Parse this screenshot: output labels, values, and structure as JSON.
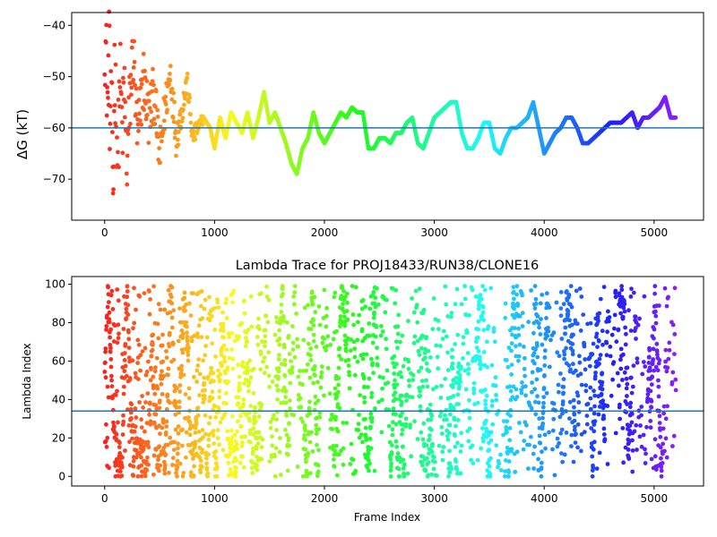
{
  "chart_data": [
    {
      "type": "scatter",
      "title": "",
      "xlabel": "",
      "ylabel": "ΔG (kT)",
      "xlim": [
        -300,
        5450
      ],
      "ylim": [
        -78,
        -37.5
      ],
      "xticks": [
        0,
        1000,
        2000,
        3000,
        4000,
        5000
      ],
      "yticks": [
        -70,
        -60,
        -50,
        -40
      ],
      "reference_line": {
        "y": -60,
        "color": "#1f77b4"
      },
      "colormap": "rainbow (red at frame 0 → violet at last frame)",
      "x_range": [
        0,
        5200
      ],
      "series": [
        {
          "values_description": "noisy scatter near start, converging to smooth trace",
          "points": [
            [
              0,
              -40
            ],
            [
              20,
              -50
            ],
            [
              30,
              -56
            ],
            [
              40,
              -42
            ],
            [
              50,
              -63
            ],
            [
              60,
              -39
            ],
            [
              70,
              -70
            ],
            [
              80,
              -72
            ],
            [
              90,
              -47
            ],
            [
              100,
              -54
            ],
            [
              120,
              -66
            ],
            [
              140,
              -49
            ],
            [
              160,
              -61
            ],
            [
              180,
              -52
            ],
            [
              200,
              -68
            ],
            [
              230,
              -55
            ],
            [
              260,
              -45
            ],
            [
              300,
              -63
            ],
            [
              350,
              -50
            ],
            [
              400,
              -58
            ],
            [
              450,
              -53
            ],
            [
              500,
              -66
            ],
            [
              550,
              -56
            ],
            [
              600,
              -49
            ],
            [
              650,
              -62
            ],
            [
              700,
              -57
            ],
            [
              750,
              -51
            ],
            [
              800,
              -62
            ],
            [
              900,
              -58
            ],
            [
              960,
              -60
            ],
            [
              1000,
              -64
            ],
            [
              1050,
              -58
            ],
            [
              1100,
              -62
            ],
            [
              1150,
              -57
            ],
            [
              1200,
              -59
            ],
            [
              1250,
              -61
            ],
            [
              1300,
              -57
            ],
            [
              1350,
              -62
            ],
            [
              1400,
              -58
            ],
            [
              1450,
              -53
            ],
            [
              1500,
              -59
            ],
            [
              1550,
              -57
            ],
            [
              1600,
              -60
            ],
            [
              1650,
              -63
            ],
            [
              1700,
              -67
            ],
            [
              1750,
              -69
            ],
            [
              1800,
              -64
            ],
            [
              1850,
              -62
            ],
            [
              1900,
              -57
            ],
            [
              1950,
              -61
            ],
            [
              2000,
              -63
            ],
            [
              2100,
              -59
            ],
            [
              2150,
              -57
            ],
            [
              2200,
              -58
            ],
            [
              2250,
              -56
            ],
            [
              2300,
              -57
            ],
            [
              2350,
              -57
            ],
            [
              2400,
              -64
            ],
            [
              2450,
              -64
            ],
            [
              2500,
              -62
            ],
            [
              2550,
              -62
            ],
            [
              2600,
              -63
            ],
            [
              2650,
              -61
            ],
            [
              2700,
              -61
            ],
            [
              2750,
              -59
            ],
            [
              2800,
              -58
            ],
            [
              2850,
              -63
            ],
            [
              2900,
              -64
            ],
            [
              2950,
              -61
            ],
            [
              3000,
              -58
            ],
            [
              3050,
              -57
            ],
            [
              3100,
              -56
            ],
            [
              3150,
              -55
            ],
            [
              3200,
              -55
            ],
            [
              3250,
              -61
            ],
            [
              3300,
              -64
            ],
            [
              3350,
              -64
            ],
            [
              3400,
              -62
            ],
            [
              3450,
              -59
            ],
            [
              3500,
              -59
            ],
            [
              3550,
              -64
            ],
            [
              3600,
              -65
            ],
            [
              3650,
              -62
            ],
            [
              3700,
              -60
            ],
            [
              3750,
              -60
            ],
            [
              3800,
              -59
            ],
            [
              3850,
              -58
            ],
            [
              3900,
              -55
            ],
            [
              3950,
              -60
            ],
            [
              4000,
              -65
            ],
            [
              4050,
              -63
            ],
            [
              4100,
              -61
            ],
            [
              4150,
              -60
            ],
            [
              4200,
              -58
            ],
            [
              4250,
              -58
            ],
            [
              4300,
              -60
            ],
            [
              4350,
              -63
            ],
            [
              4400,
              -63
            ],
            [
              4450,
              -62
            ],
            [
              4500,
              -61
            ],
            [
              4550,
              -60
            ],
            [
              4600,
              -59
            ],
            [
              4650,
              -59
            ],
            [
              4700,
              -59
            ],
            [
              4750,
              -58
            ],
            [
              4800,
              -57
            ],
            [
              4850,
              -60
            ],
            [
              4900,
              -58
            ],
            [
              4950,
              -58
            ],
            [
              5000,
              -57
            ],
            [
              5050,
              -56
            ],
            [
              5100,
              -54
            ],
            [
              5150,
              -58
            ],
            [
              5200,
              -58
            ]
          ]
        }
      ]
    },
    {
      "type": "scatter",
      "title": "Lambda Trace for PROJ18433/RUN38/CLONE16",
      "xlabel": "Frame Index",
      "ylabel": "Lambda Index",
      "xlim": [
        -300,
        5450
      ],
      "ylim": [
        -5,
        104
      ],
      "xticks": [
        0,
        1000,
        2000,
        3000,
        4000,
        5000
      ],
      "yticks": [
        0,
        20,
        40,
        60,
        80,
        100
      ],
      "reference_line": {
        "y": 34,
        "color": "#1f77b4"
      },
      "colormap": "rainbow (red at frame 0 → violet at last frame)",
      "x_range": [
        0,
        5200
      ],
      "y_range": [
        0,
        99
      ],
      "n_points": 5200,
      "series": [
        {
          "values_description": "lambda index per frame, sweeping 0–99 in vertical bands"
        }
      ]
    }
  ]
}
